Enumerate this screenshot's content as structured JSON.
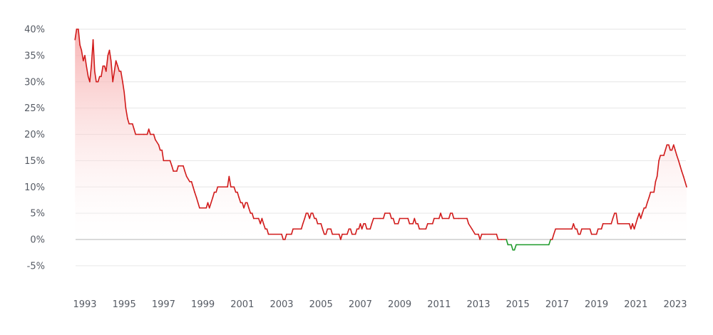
{
  "chart_data": {
    "type": "area",
    "title": "",
    "xlabel": "",
    "ylabel": "",
    "xlim": [
      1992.5,
      2023.6
    ],
    "ylim": [
      -5,
      40
    ],
    "grid": true,
    "y_ticks": [
      {
        "value": 40,
        "label": "40%"
      },
      {
        "value": 35,
        "label": "35%"
      },
      {
        "value": 30,
        "label": "30%"
      },
      {
        "value": 25,
        "label": "25%"
      },
      {
        "value": 20,
        "label": "20%"
      },
      {
        "value": 15,
        "label": "15%"
      },
      {
        "value": 10,
        "label": "10%"
      },
      {
        "value": 5,
        "label": "5%"
      },
      {
        "value": 0,
        "label": "0%"
      },
      {
        "value": -5,
        "label": "-5%"
      }
    ],
    "x_ticks": [
      {
        "value": 1993,
        "label": "1993"
      },
      {
        "value": 1995,
        "label": "1995"
      },
      {
        "value": 1997,
        "label": "1997"
      },
      {
        "value": 1999,
        "label": "1999"
      },
      {
        "value": 2001,
        "label": "2001"
      },
      {
        "value": 2003,
        "label": "2003"
      },
      {
        "value": 2005,
        "label": "2005"
      },
      {
        "value": 2007,
        "label": "2007"
      },
      {
        "value": 2009,
        "label": "2009"
      },
      {
        "value": 2011,
        "label": "2011"
      },
      {
        "value": 2013,
        "label": "2013"
      },
      {
        "value": 2015,
        "label": "2015"
      },
      {
        "value": 2017,
        "label": "2017"
      },
      {
        "value": 2019,
        "label": "2019"
      },
      {
        "value": 2021,
        "label": "2021"
      },
      {
        "value": 2023,
        "label": "2023"
      }
    ],
    "colors": {
      "positive": "#d11a1a",
      "negative": "#1e9a2a",
      "fill": "#f6b5b5",
      "grid": "#e6e6e6",
      "zero_line": "#b4b4b4"
    },
    "series": [
      {
        "points": [
          [
            1992.5,
            38
          ],
          [
            1992.58,
            40
          ],
          [
            1992.67,
            40
          ],
          [
            1992.75,
            37
          ],
          [
            1992.83,
            36
          ],
          [
            1992.92,
            34
          ],
          [
            1993.0,
            35
          ],
          [
            1993.08,
            33
          ],
          [
            1993.17,
            31
          ],
          [
            1993.25,
            30
          ],
          [
            1993.33,
            33
          ],
          [
            1993.42,
            38
          ],
          [
            1993.5,
            32
          ],
          [
            1993.58,
            30
          ],
          [
            1993.67,
            30
          ],
          [
            1993.75,
            31
          ],
          [
            1993.83,
            31
          ],
          [
            1993.92,
            33
          ],
          [
            1994.0,
            33
          ],
          [
            1994.08,
            32
          ],
          [
            1994.17,
            35
          ],
          [
            1994.25,
            36
          ],
          [
            1994.33,
            34
          ],
          [
            1994.42,
            30
          ],
          [
            1994.5,
            32
          ],
          [
            1994.58,
            34
          ],
          [
            1994.67,
            33
          ],
          [
            1994.75,
            32
          ],
          [
            1994.83,
            32
          ],
          [
            1994.92,
            30
          ],
          [
            1995.0,
            28
          ],
          [
            1995.08,
            25
          ],
          [
            1995.17,
            23
          ],
          [
            1995.25,
            22
          ],
          [
            1995.42,
            22
          ],
          [
            1995.5,
            21
          ],
          [
            1995.58,
            20
          ],
          [
            1995.75,
            20
          ],
          [
            1996.0,
            20
          ],
          [
            1996.17,
            20
          ],
          [
            1996.25,
            21
          ],
          [
            1996.33,
            20
          ],
          [
            1996.5,
            20
          ],
          [
            1996.58,
            19
          ],
          [
            1996.75,
            18
          ],
          [
            1996.83,
            17
          ],
          [
            1996.92,
            17
          ],
          [
            1997.0,
            15
          ],
          [
            1997.17,
            15
          ],
          [
            1997.33,
            15
          ],
          [
            1997.42,
            14
          ],
          [
            1997.5,
            13
          ],
          [
            1997.67,
            13
          ],
          [
            1997.75,
            14
          ],
          [
            1998.0,
            14
          ],
          [
            1998.08,
            13
          ],
          [
            1998.17,
            12
          ],
          [
            1998.33,
            11
          ],
          [
            1998.42,
            11
          ],
          [
            1998.5,
            10
          ],
          [
            1998.58,
            9
          ],
          [
            1998.67,
            8
          ],
          [
            1998.75,
            7
          ],
          [
            1998.83,
            6
          ],
          [
            1999.0,
            6
          ],
          [
            1999.17,
            6
          ],
          [
            1999.25,
            7
          ],
          [
            1999.33,
            6
          ],
          [
            1999.5,
            8
          ],
          [
            1999.58,
            9
          ],
          [
            1999.67,
            9
          ],
          [
            1999.75,
            10
          ],
          [
            2000.0,
            10
          ],
          [
            2000.08,
            10
          ],
          [
            2000.17,
            10
          ],
          [
            2000.25,
            10
          ],
          [
            2000.33,
            12
          ],
          [
            2000.42,
            10
          ],
          [
            2000.58,
            10
          ],
          [
            2000.67,
            9
          ],
          [
            2000.75,
            9
          ],
          [
            2000.83,
            8
          ],
          [
            2000.92,
            7
          ],
          [
            2001.0,
            7
          ],
          [
            2001.08,
            6
          ],
          [
            2001.17,
            7
          ],
          [
            2001.25,
            7
          ],
          [
            2001.33,
            6
          ],
          [
            2001.42,
            5
          ],
          [
            2001.5,
            5
          ],
          [
            2001.58,
            4
          ],
          [
            2001.75,
            4
          ],
          [
            2001.83,
            4
          ],
          [
            2001.92,
            3
          ],
          [
            2002.0,
            4
          ],
          [
            2002.08,
            3
          ],
          [
            2002.17,
            2
          ],
          [
            2002.25,
            2
          ],
          [
            2002.33,
            1
          ],
          [
            2003.0,
            1
          ],
          [
            2003.08,
            0
          ],
          [
            2003.17,
            0
          ],
          [
            2003.25,
            1
          ],
          [
            2003.42,
            1
          ],
          [
            2003.5,
            1
          ],
          [
            2003.58,
            2
          ],
          [
            2004.0,
            2
          ],
          [
            2004.08,
            3
          ],
          [
            2004.17,
            4
          ],
          [
            2004.25,
            5
          ],
          [
            2004.33,
            5
          ],
          [
            2004.42,
            4
          ],
          [
            2004.5,
            5
          ],
          [
            2004.58,
            5
          ],
          [
            2004.67,
            4
          ],
          [
            2004.75,
            4
          ],
          [
            2004.83,
            3
          ],
          [
            2005.0,
            3
          ],
          [
            2005.08,
            2
          ],
          [
            2005.17,
            1
          ],
          [
            2005.25,
            1
          ],
          [
            2005.33,
            2
          ],
          [
            2005.42,
            2
          ],
          [
            2005.5,
            2
          ],
          [
            2005.58,
            1
          ],
          [
            2005.92,
            1
          ],
          [
            2006.0,
            0
          ],
          [
            2006.08,
            1
          ],
          [
            2006.17,
            1
          ],
          [
            2006.33,
            1
          ],
          [
            2006.42,
            2
          ],
          [
            2006.5,
            2
          ],
          [
            2006.58,
            1
          ],
          [
            2006.75,
            1
          ],
          [
            2006.83,
            2
          ],
          [
            2006.92,
            2
          ],
          [
            2007.0,
            3
          ],
          [
            2007.08,
            2
          ],
          [
            2007.17,
            3
          ],
          [
            2007.25,
            3
          ],
          [
            2007.33,
            2
          ],
          [
            2007.5,
            2
          ],
          [
            2007.58,
            3
          ],
          [
            2007.67,
            4
          ],
          [
            2008.0,
            4
          ],
          [
            2008.17,
            4
          ],
          [
            2008.25,
            5
          ],
          [
            2008.5,
            5
          ],
          [
            2008.58,
            4
          ],
          [
            2008.67,
            4
          ],
          [
            2008.75,
            3
          ],
          [
            2008.92,
            3
          ],
          [
            2009.0,
            4
          ],
          [
            2009.42,
            4
          ],
          [
            2009.5,
            3
          ],
          [
            2009.67,
            3
          ],
          [
            2009.75,
            4
          ],
          [
            2009.83,
            3
          ],
          [
            2009.92,
            3
          ],
          [
            2010.0,
            2
          ],
          [
            2010.33,
            2
          ],
          [
            2010.42,
            3
          ],
          [
            2010.67,
            3
          ],
          [
            2010.75,
            4
          ],
          [
            2011.0,
            4
          ],
          [
            2011.08,
            5
          ],
          [
            2011.17,
            4
          ],
          [
            2011.5,
            4
          ],
          [
            2011.58,
            5
          ],
          [
            2011.67,
            5
          ],
          [
            2011.75,
            4
          ],
          [
            2012.0,
            4
          ],
          [
            2012.42,
            4
          ],
          [
            2012.5,
            3
          ],
          [
            2012.67,
            2
          ],
          [
            2012.83,
            1
          ],
          [
            2013.0,
            1
          ],
          [
            2013.08,
            0
          ],
          [
            2013.17,
            1
          ],
          [
            2013.33,
            1
          ],
          [
            2013.92,
            1
          ],
          [
            2014.0,
            0
          ],
          [
            2014.17,
            0
          ],
          [
            2014.42,
            0
          ],
          [
            2014.5,
            -1
          ],
          [
            2014.58,
            -1
          ],
          [
            2014.67,
            -1
          ],
          [
            2014.75,
            -2
          ],
          [
            2014.83,
            -2
          ],
          [
            2014.92,
            -1
          ],
          [
            2015.0,
            -1
          ],
          [
            2016.58,
            -1
          ],
          [
            2016.67,
            0
          ],
          [
            2016.75,
            0
          ],
          [
            2016.83,
            1
          ],
          [
            2016.92,
            2
          ],
          [
            2017.0,
            2
          ],
          [
            2017.75,
            2
          ],
          [
            2017.83,
            3
          ],
          [
            2017.92,
            2
          ],
          [
            2018.0,
            2
          ],
          [
            2018.08,
            1
          ],
          [
            2018.17,
            1
          ],
          [
            2018.25,
            2
          ],
          [
            2018.33,
            2
          ],
          [
            2018.67,
            2
          ],
          [
            2018.75,
            1
          ],
          [
            2018.92,
            1
          ],
          [
            2019.0,
            1
          ],
          [
            2019.08,
            2
          ],
          [
            2019.25,
            2
          ],
          [
            2019.33,
            3
          ],
          [
            2019.67,
            3
          ],
          [
            2019.75,
            3
          ],
          [
            2019.83,
            4
          ],
          [
            2019.92,
            5
          ],
          [
            2020.0,
            5
          ],
          [
            2020.08,
            3
          ],
          [
            2020.17,
            3
          ],
          [
            2020.67,
            3
          ],
          [
            2020.75,
            2
          ],
          [
            2020.83,
            3
          ],
          [
            2020.92,
            2
          ],
          [
            2021.0,
            3
          ],
          [
            2021.08,
            4
          ],
          [
            2021.17,
            5
          ],
          [
            2021.25,
            4
          ],
          [
            2021.33,
            5
          ],
          [
            2021.42,
            6
          ],
          [
            2021.5,
            6
          ],
          [
            2021.58,
            7
          ],
          [
            2021.67,
            8
          ],
          [
            2021.75,
            9
          ],
          [
            2021.92,
            9
          ],
          [
            2022.0,
            11
          ],
          [
            2022.08,
            12
          ],
          [
            2022.17,
            15
          ],
          [
            2022.25,
            16
          ],
          [
            2022.42,
            16
          ],
          [
            2022.5,
            17
          ],
          [
            2022.58,
            18
          ],
          [
            2022.67,
            18
          ],
          [
            2022.75,
            17
          ],
          [
            2022.83,
            17
          ],
          [
            2022.92,
            18
          ],
          [
            2023.0,
            17
          ],
          [
            2023.08,
            16
          ],
          [
            2023.17,
            15
          ],
          [
            2023.25,
            14
          ],
          [
            2023.33,
            13
          ],
          [
            2023.42,
            12
          ],
          [
            2023.5,
            11
          ],
          [
            2023.58,
            10
          ]
        ]
      }
    ]
  }
}
